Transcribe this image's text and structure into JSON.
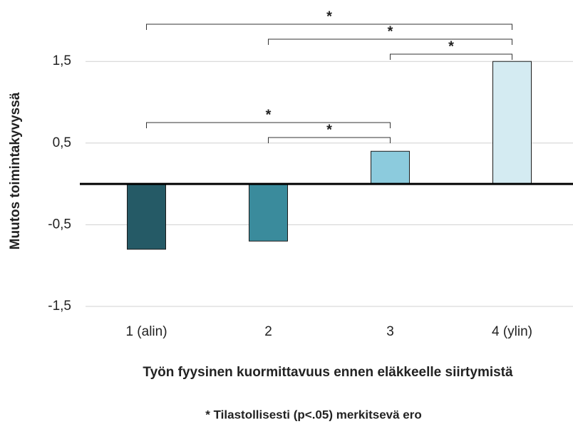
{
  "chart_data": {
    "type": "bar",
    "y_label": "Muutos toimintakyvyssä",
    "x_label": "Työn fyysinen kuormittavuus ennen eläkkeelle siirtymistä",
    "note": "* Tilastollisesti (p<.05) merkitsevä ero",
    "categories": [
      "1 (alin)",
      "2",
      "3",
      "4 (ylin)"
    ],
    "values": [
      -0.8,
      -0.7,
      0.4,
      1.5
    ],
    "colors": [
      "#255a66",
      "#3a8b9c",
      "#8ccbdd",
      "#d4ebf2"
    ],
    "ylim": [
      -1.5,
      2.2
    ],
    "yticks": [
      {
        "value": -1.5,
        "label": "-1,5"
      },
      {
        "value": -0.5,
        "label": "-0,5"
      },
      {
        "value": 0.5,
        "label": "0,5"
      },
      {
        "value": 1.5,
        "label": "1,5"
      }
    ],
    "grid": true,
    "significance": [
      {
        "between": [
          0,
          3
        ],
        "label": "*"
      },
      {
        "between": [
          1,
          3
        ],
        "label": "*"
      },
      {
        "between": [
          2,
          3
        ],
        "label": "*"
      },
      {
        "between": [
          0,
          2
        ],
        "label": "*"
      },
      {
        "between": [
          1,
          2
        ],
        "label": "*"
      }
    ]
  }
}
